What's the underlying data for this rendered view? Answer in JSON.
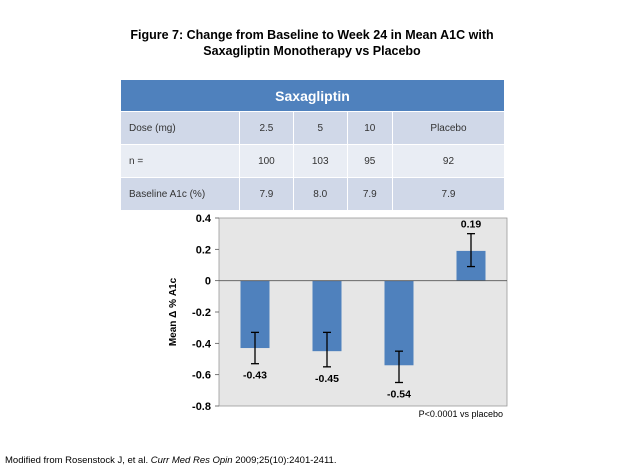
{
  "figure": {
    "title_line1": "Figure 7: Change from Baseline to Week 24 in Mean A1C with",
    "title_line2": "Saxagliptin Monotherapy vs Placebo"
  },
  "table": {
    "header": "Saxagliptin",
    "rows": [
      {
        "label": "Dose (mg)",
        "values": [
          "2.5",
          "5",
          "10",
          "Placebo"
        ]
      },
      {
        "label": "n =",
        "values": [
          "100",
          "103",
          "95",
          "92"
        ]
      },
      {
        "label": "Baseline A1c (%)",
        "values": [
          "7.9",
          "8.0",
          "7.9",
          "7.9"
        ]
      }
    ]
  },
  "chart_data": {
    "type": "bar",
    "categories": [
      "2.5",
      "5",
      "10",
      "Placebo"
    ],
    "values": [
      -0.43,
      -0.45,
      -0.54,
      0.19
    ],
    "error_bars": [
      {
        "low": -0.53,
        "high": -0.33
      },
      {
        "low": -0.55,
        "high": -0.33
      },
      {
        "low": -0.65,
        "high": -0.45
      },
      {
        "low": 0.09,
        "high": 0.3
      }
    ],
    "data_labels": [
      "-0.43",
      "-0.45",
      "-0.54",
      "0.19"
    ],
    "ylabel": "Mean Δ % A1c",
    "ylim": [
      -0.8,
      0.4
    ],
    "yticks": [
      0.4,
      0.2,
      0,
      -0.2,
      -0.4,
      -0.6,
      -0.8
    ],
    "ytick_labels": [
      "0.4",
      "0.2",
      "0",
      "-0.2",
      "-0.4",
      "-0.6",
      "-0.8"
    ],
    "annotation": "P<0.0001 vs placebo",
    "grid": false,
    "colors": {
      "bar": "#4f81bd",
      "plot_bg": "#e6e6e6"
    }
  },
  "footer": {
    "prefix": "Modified from Rosenstock J, et al. ",
    "journal": "Curr Med Res Opin",
    "suffix": " 2009;25(10):2401-2411."
  }
}
